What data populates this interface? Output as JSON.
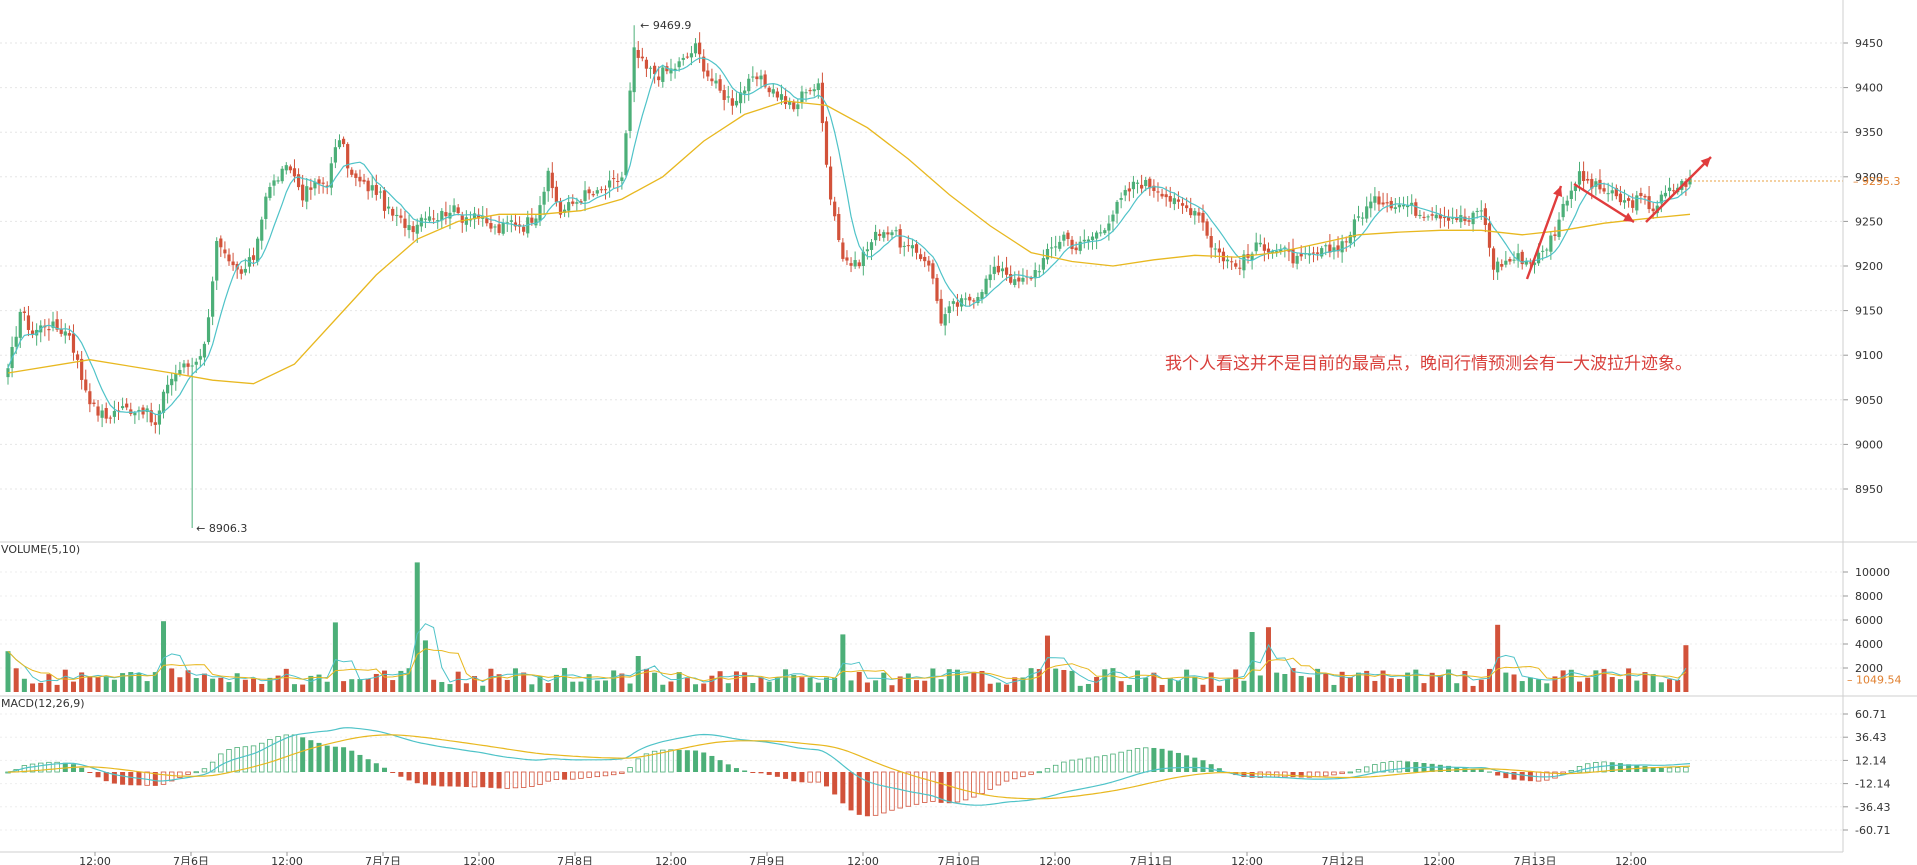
{
  "chart_data": [
    {
      "type": "candlestick",
      "title": "",
      "x_tick_labels": [
        "12:00",
        "7月6日",
        "12:00",
        "7月7日",
        "12:00",
        "7月8日",
        "12:00",
        "7月9日",
        "12:00",
        "7月10日",
        "12:00",
        "7月11日",
        "12:00",
        "7月12日",
        "12:00",
        "7月13日",
        "12:00"
      ],
      "y_ticks": [
        8950,
        9000,
        9050,
        9100,
        9150,
        9200,
        9250,
        9300,
        9350,
        9400,
        9450
      ],
      "ylim": [
        8900,
        9490
      ],
      "last_price_label": "9295.3",
      "high_marker": {
        "label": "9469.9",
        "value": 9469.9
      },
      "low_marker": {
        "label": "8906.3",
        "value": 8906.3
      },
      "annotation": "我个人看这并不是目前的最高点，晚间行情预测会有一大波拉升迹象。",
      "up_color": "#4caf78",
      "down_color": "#d2523a",
      "ma_fast_color": "#4fc3c8",
      "ma_slow_color": "#e8b820",
      "arrow_color": "#e03c3c",
      "close_path": [
        [
          0,
          9080
        ],
        [
          3,
          9150
        ],
        [
          6,
          9125
        ],
        [
          9,
          9135
        ],
        [
          12,
          9130
        ],
        [
          15,
          9125
        ],
        [
          18,
          9075
        ],
        [
          21,
          9040
        ],
        [
          24,
          9030
        ],
        [
          27,
          9040
        ],
        [
          30,
          9040
        ],
        [
          33,
          9040
        ],
        [
          36,
          9020
        ],
        [
          39,
          9070
        ],
        [
          42,
          9085
        ],
        [
          45,
          9090
        ],
        [
          48,
          9110
        ],
        [
          51,
          9225
        ],
        [
          54,
          9200
        ],
        [
          57,
          9190
        ],
        [
          60,
          9210
        ],
        [
          63,
          9280
        ],
        [
          66,
          9300
        ],
        [
          69,
          9310
        ],
        [
          72,
          9280
        ],
        [
          75,
          9290
        ],
        [
          78,
          9295
        ],
        [
          81,
          9345
        ],
        [
          84,
          9300
        ],
        [
          87,
          9290
        ],
        [
          90,
          9285
        ],
        [
          93,
          9260
        ],
        [
          96,
          9250
        ],
        [
          99,
          9245
        ],
        [
          102,
          9260
        ],
        [
          105,
          9255
        ],
        [
          108,
          9265
        ],
        [
          111,
          9255
        ],
        [
          114,
          9260
        ],
        [
          117,
          9245
        ],
        [
          120,
          9240
        ],
        [
          123,
          9250
        ],
        [
          126,
          9245
        ],
        [
          129,
          9260
        ],
        [
          132,
          9300
        ],
        [
          135,
          9260
        ],
        [
          138,
          9270
        ],
        [
          141,
          9280
        ],
        [
          144,
          9280
        ],
        [
          147,
          9290
        ],
        [
          150,
          9300
        ],
        [
          153,
          9440
        ],
        [
          156,
          9420
        ],
        [
          159,
          9415
        ],
        [
          162,
          9420
        ],
        [
          165,
          9430
        ],
        [
          168,
          9445
        ],
        [
          171,
          9415
        ],
        [
          174,
          9395
        ],
        [
          177,
          9385
        ],
        [
          180,
          9400
        ],
        [
          183,
          9410
        ],
        [
          186,
          9400
        ],
        [
          189,
          9390
        ],
        [
          192,
          9375
        ],
        [
          195,
          9400
        ],
        [
          198,
          9400
        ],
        [
          201,
          9280
        ],
        [
          204,
          9210
        ],
        [
          207,
          9200
        ],
        [
          210,
          9220
        ],
        [
          213,
          9240
        ],
        [
          216,
          9240
        ],
        [
          219,
          9220
        ],
        [
          222,
          9215
        ],
        [
          225,
          9205
        ],
        [
          228,
          9140
        ],
        [
          231,
          9155
        ],
        [
          234,
          9160
        ],
        [
          237,
          9170
        ],
        [
          240,
          9190
        ],
        [
          243,
          9200
        ],
        [
          246,
          9180
        ],
        [
          249,
          9185
        ],
        [
          252,
          9200
        ],
        [
          255,
          9220
        ],
        [
          258,
          9235
        ],
        [
          261,
          9220
        ],
        [
          264,
          9230
        ],
        [
          267,
          9240
        ],
        [
          270,
          9260
        ],
        [
          273,
          9280
        ],
        [
          276,
          9295
        ],
        [
          279,
          9290
        ],
        [
          282,
          9285
        ],
        [
          285,
          9270
        ],
        [
          288,
          9265
        ],
        [
          291,
          9262
        ],
        [
          294,
          9225
        ],
        [
          297,
          9210
        ],
        [
          300,
          9200
        ],
        [
          303,
          9210
        ],
        [
          306,
          9225
        ],
        [
          309,
          9220
        ],
        [
          312,
          9215
        ],
        [
          315,
          9205
        ],
        [
          318,
          9210
        ],
        [
          321,
          9215
        ],
        [
          324,
          9220
        ],
        [
          327,
          9230
        ],
        [
          330,
          9255
        ],
        [
          333,
          9270
        ],
        [
          336,
          9275
        ],
        [
          339,
          9270
        ],
        [
          342,
          9268
        ],
        [
          345,
          9260
        ],
        [
          348,
          9262
        ],
        [
          351,
          9258
        ],
        [
          354,
          9255
        ],
        [
          357,
          9250
        ],
        [
          360,
          9265
        ],
        [
          363,
          9200
        ],
        [
          366,
          9205
        ],
        [
          369,
          9210
        ],
        [
          372,
          9205
        ],
        [
          375,
          9215
        ],
        [
          378,
          9240
        ],
        [
          381,
          9280
        ],
        [
          384,
          9300
        ],
        [
          387,
          9290
        ],
        [
          390,
          9285
        ],
        [
          393,
          9275
        ],
        [
          396,
          9270
        ],
        [
          399,
          9275
        ],
        [
          402,
          9265
        ],
        [
          405,
          9280
        ],
        [
          408,
          9290
        ],
        [
          411,
          9296
        ]
      ],
      "ma_slow_path": [
        [
          0,
          9080
        ],
        [
          20,
          9095
        ],
        [
          40,
          9080
        ],
        [
          50,
          9072
        ],
        [
          60,
          9068
        ],
        [
          70,
          9090
        ],
        [
          80,
          9140
        ],
        [
          90,
          9190
        ],
        [
          100,
          9230
        ],
        [
          110,
          9250
        ],
        [
          120,
          9258
        ],
        [
          130,
          9258
        ],
        [
          140,
          9262
        ],
        [
          150,
          9275
        ],
        [
          160,
          9300
        ],
        [
          170,
          9340
        ],
        [
          180,
          9370
        ],
        [
          190,
          9385
        ],
        [
          200,
          9380
        ],
        [
          210,
          9355
        ],
        [
          220,
          9320
        ],
        [
          230,
          9280
        ],
        [
          240,
          9245
        ],
        [
          250,
          9215
        ],
        [
          260,
          9205
        ],
        [
          270,
          9200
        ],
        [
          280,
          9207
        ],
        [
          290,
          9212
        ],
        [
          300,
          9210
        ],
        [
          310,
          9215
        ],
        [
          320,
          9225
        ],
        [
          330,
          9235
        ],
        [
          340,
          9238
        ],
        [
          350,
          9240
        ],
        [
          360,
          9240
        ],
        [
          370,
          9235
        ],
        [
          380,
          9240
        ],
        [
          390,
          9248
        ],
        [
          400,
          9253
        ],
        [
          411,
          9258
        ]
      ],
      "volume": {
        "label": "VOLUME(5,10)",
        "y_ticks": [
          2000,
          4000,
          6000,
          8000,
          10000
        ],
        "ylim": [
          0,
          12000
        ],
        "last_value_label": "1049.54",
        "spikes": [
          {
            "bar": 1,
            "value": 3400,
            "dir": "up"
          },
          {
            "bar": 39,
            "value": 5900,
            "dir": "up"
          },
          {
            "bar": 81,
            "value": 5800,
            "dir": "up"
          },
          {
            "bar": 100,
            "value": 10800,
            "dir": "up"
          },
          {
            "bar": 102,
            "value": 4300,
            "dir": "up"
          },
          {
            "bar": 154,
            "value": 3000,
            "dir": "up"
          },
          {
            "bar": 205,
            "value": 4800,
            "dir": "up"
          },
          {
            "bar": 255,
            "value": 4700,
            "dir": "down"
          },
          {
            "bar": 305,
            "value": 5000,
            "dir": "up"
          },
          {
            "bar": 309,
            "value": 5400,
            "dir": "down"
          },
          {
            "bar": 364,
            "value": 5600,
            "dir": "down"
          },
          {
            "bar": 411,
            "value": 3900,
            "dir": "down"
          }
        ]
      },
      "macd": {
        "label": "MACD(12,26,9)",
        "y_ticks": [
          60.71,
          36.43,
          12.14,
          -12.14,
          -36.43,
          -60.71
        ],
        "ylim": [
          -66,
          66
        ]
      }
    }
  ]
}
